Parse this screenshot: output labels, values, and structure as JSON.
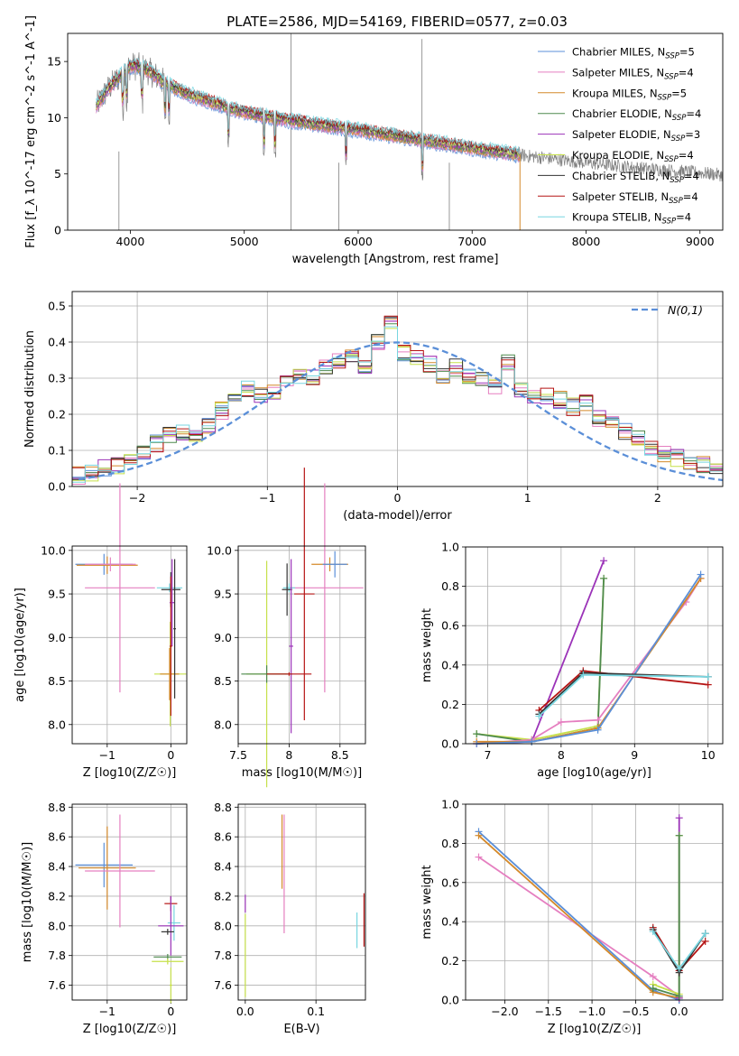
{
  "figure_title": "PLATE=2586, MJD=54169, FIBERID=0577, z=0.03",
  "colors": {
    "chabrier_miles": "#5b8fd8",
    "salpeter_miles": "#e57fc0",
    "kroupa_miles": "#d4892a",
    "chabrier_elodie": "#4e8a4e",
    "salpeter_elodie": "#9b33b8",
    "kroupa_elodie": "#c6e04a",
    "chabrier_stelib": "#333333",
    "salpeter_stelib": "#b51414",
    "kroupa_stelib": "#78d6e0",
    "observed": "#7f7f7f",
    "gaussian": "#5b8fd8"
  },
  "chart_data": [
    {
      "id": "spectrum",
      "type": "line",
      "title": "PLATE=2586, MJD=54169, FIBERID=0577, z=0.03",
      "xlabel": "wavelength [Angstrom, rest frame]",
      "ylabel": "Flux [f_λ 10^-17 erg cm^-2 s^-1 A^-1]",
      "xlim": [
        3450,
        9200
      ],
      "ylim": [
        0,
        17.5
      ],
      "xticks": [
        4000,
        5000,
        6000,
        7000,
        8000,
        9000
      ],
      "yticks": [
        0,
        5,
        10,
        15
      ],
      "grid": false,
      "legend_loc": "upper right",
      "series": [
        {
          "name": "Chabrier MILES, N_SSP=5",
          "color": "#5b8fd8"
        },
        {
          "name": "Salpeter MILES, N_SSP=4",
          "color": "#e57fc0"
        },
        {
          "name": "Kroupa MILES, N_SSP=5",
          "color": "#d4892a"
        },
        {
          "name": "Chabrier ELODIE, N_SSP=4",
          "color": "#4e8a4e"
        },
        {
          "name": "Salpeter ELODIE, N_SSP=3",
          "color": "#9b33b8"
        },
        {
          "name": "Kroupa ELODIE, N_SSP=4",
          "color": "#c6e04a"
        },
        {
          "name": "Chabrier STELIB, N_SSP=4",
          "color": "#333333"
        },
        {
          "name": "Salpeter STELIB, N_SSP=4",
          "color": "#b51414"
        },
        {
          "name": "Kroupa STELIB, N_SSP=4",
          "color": "#78d6e0"
        }
      ],
      "continuum": {
        "x": [
          3700,
          3800,
          3900,
          4000,
          4100,
          4200,
          4300,
          4500,
          4800,
          5000,
          5200,
          5500,
          6000,
          6500,
          7000,
          7400,
          8000,
          8500,
          9000,
          9200
        ],
        "y": [
          11.0,
          12.5,
          13.6,
          14.6,
          14.5,
          13.9,
          13.1,
          12.1,
          11.1,
          10.5,
          10.1,
          9.6,
          8.9,
          8.1,
          7.3,
          6.7,
          6.0,
          5.5,
          5.1,
          4.9
        ]
      },
      "observed_range": [
        3700,
        9200
      ],
      "models_range": [
        3700,
        7420
      ]
    },
    {
      "id": "residuals",
      "type": "histogram",
      "xlabel": "(data-model)/error",
      "ylabel": "Normed distribution",
      "xlim": [
        -2.5,
        2.5
      ],
      "ylim": [
        0,
        0.54
      ],
      "xticks": [
        -2,
        -1,
        0,
        1,
        2
      ],
      "yticks": [
        0.0,
        0.1,
        0.2,
        0.3,
        0.4,
        0.5
      ],
      "grid": true,
      "legend_loc": "upper right",
      "gaussian_label": "N(0,1)",
      "bin_edges_start": -2.5,
      "bin_width": 0.1,
      "base_values": [
        0.03,
        0.04,
        0.05,
        0.06,
        0.07,
        0.09,
        0.12,
        0.14,
        0.15,
        0.14,
        0.17,
        0.21,
        0.24,
        0.27,
        0.25,
        0.26,
        0.29,
        0.31,
        0.3,
        0.33,
        0.35,
        0.36,
        0.33,
        0.4,
        0.46,
        0.37,
        0.36,
        0.34,
        0.31,
        0.33,
        0.31,
        0.3,
        0.28,
        0.34,
        0.27,
        0.25,
        0.25,
        0.24,
        0.22,
        0.23,
        0.19,
        0.17,
        0.15,
        0.13,
        0.11,
        0.09,
        0.08,
        0.07,
        0.06,
        0.04
      ]
    },
    {
      "id": "age_vs_Z",
      "type": "scatter",
      "xlabel": "Z [log10(Z/Z☉)]",
      "ylabel": "age [log10(age/yr)]",
      "xlim": [
        -1.55,
        0.25
      ],
      "ylim": [
        7.78,
        10.05
      ],
      "xticks": [
        -1,
        0
      ],
      "yticks": [
        8.0,
        8.5,
        9.0,
        9.5,
        10.0
      ],
      "grid": true,
      "points": [
        {
          "s": "chabrier_miles",
          "x": -1.05,
          "y": 9.84,
          "xerr": 0.45,
          "yerr": 0.12
        },
        {
          "s": "kroupa_miles",
          "x": -1.0,
          "y": 9.83,
          "xerr": 0.48,
          "yerr": 0.1
        },
        {
          "s": "salpeter_miles",
          "x": -0.8,
          "y": 9.57,
          "xerr": 0.55,
          "yerr": 1.2
        },
        {
          "s": "salpeter_miles",
          "x": -0.95,
          "y": 9.84,
          "xerr": 0.4,
          "yerr": 0.08
        },
        {
          "s": "kroupa_stelib",
          "x": -0.02,
          "y": 9.57,
          "xerr": 0.2,
          "yerr": 0.05
        },
        {
          "s": "chabrier_stelib",
          "x": 0.0,
          "y": 9.55,
          "xerr": 0.15,
          "yerr": 0.2
        },
        {
          "s": "kroupa_elodie",
          "x": -0.01,
          "y": 8.58,
          "xerr": 0.25,
          "yerr": 0.6
        },
        {
          "s": "kroupa_miles",
          "x": -0.02,
          "y": 8.58,
          "xerr": 0.15,
          "yerr": 0.3
        },
        {
          "s": "salpeter_elodie",
          "x": 0.02,
          "y": 9.4,
          "xerr": 0.04,
          "yerr": 0.5
        },
        {
          "s": "chabrier_stelib",
          "x": 0.06,
          "y": 9.1,
          "xerr": 0.02,
          "yerr": 0.8
        },
        {
          "s": "salpeter_stelib",
          "x": 0.0,
          "y": 8.9,
          "xerr": 0.02,
          "yerr": 0.8
        }
      ]
    },
    {
      "id": "age_vs_mass",
      "type": "scatter",
      "xlabel": "mass [log10(M/M☉)]",
      "ylabel": "",
      "xlim": [
        7.5,
        8.75
      ],
      "ylim": [
        7.78,
        10.05
      ],
      "xticks": [
        7.5,
        8.0,
        8.5
      ],
      "yticks": [
        8.0,
        8.5,
        9.0,
        9.5,
        10.0
      ],
      "grid": true,
      "points": [
        {
          "s": "salpeter_miles",
          "x": 8.35,
          "y": 9.57,
          "xerr": 0.38,
          "yerr": 1.2
        },
        {
          "s": "kroupa_miles",
          "x": 8.4,
          "y": 9.84,
          "xerr": 0.18,
          "yerr": 0.08
        },
        {
          "s": "chabrier_miles",
          "x": 8.45,
          "y": 9.84,
          "xerr": 0.12,
          "yerr": 0.15
        },
        {
          "s": "kroupa_stelib",
          "x": 8.0,
          "y": 9.57,
          "xerr": 0.06,
          "yerr": 0.05
        },
        {
          "s": "chabrier_stelib",
          "x": 7.98,
          "y": 9.55,
          "xerr": 0.05,
          "yerr": 0.3
        },
        {
          "s": "salpeter_stelib",
          "x": 8.15,
          "y": 9.5,
          "xerr": 0.1,
          "yerr": 1.45
        },
        {
          "s": "kroupa_elodie",
          "x": 7.78,
          "y": 8.58,
          "xerr": 0.2,
          "yerr": 1.3
        },
        {
          "s": "chabrier_elodie",
          "x": 7.78,
          "y": 8.58,
          "xerr": 0.25,
          "yerr": 0.1
        },
        {
          "s": "salpeter_elodie",
          "x": 8.02,
          "y": 8.9,
          "xerr": 0.02,
          "yerr": 1.0
        },
        {
          "s": "salpeter_stelib",
          "x": 8.0,
          "y": 8.58,
          "xerr": 0.22,
          "yerr": 0.02
        }
      ]
    },
    {
      "id": "weight_vs_age",
      "type": "line",
      "xlabel": "age [log10(age/yr)]",
      "ylabel": "mass weight",
      "xlim": [
        6.7,
        10.2
      ],
      "ylim": [
        0,
        1.0
      ],
      "xticks": [
        7,
        8,
        9,
        10
      ],
      "yticks": [
        0.0,
        0.2,
        0.4,
        0.6,
        0.8,
        1.0
      ],
      "grid": true,
      "series": [
        {
          "s": "salpeter_elodie",
          "x": [
            6.85,
            7.6,
            8.58
          ],
          "y": [
            0.0,
            0.01,
            0.93
          ]
        },
        {
          "s": "kroupa_elodie",
          "x": [
            6.85,
            7.6,
            8.5,
            8.58
          ],
          "y": [
            0.05,
            0.02,
            0.09,
            0.84
          ]
        },
        {
          "s": "chabrier_elodie",
          "x": [
            6.85,
            7.6,
            8.5,
            8.58
          ],
          "y": [
            0.05,
            0.01,
            0.08,
            0.84
          ]
        },
        {
          "s": "salpeter_miles",
          "x": [
            6.85,
            7.6,
            8.0,
            8.5,
            9.7,
            9.9
          ],
          "y": [
            0.0,
            0.02,
            0.11,
            0.12,
            0.72,
            0.84
          ]
        },
        {
          "s": "kroupa_miles",
          "x": [
            6.85,
            7.6,
            8.5,
            9.9
          ],
          "y": [
            0.01,
            0.01,
            0.08,
            0.84
          ]
        },
        {
          "s": "chabrier_miles",
          "x": [
            6.85,
            7.6,
            8.5,
            9.9
          ],
          "y": [
            0.0,
            0.01,
            0.07,
            0.86
          ]
        },
        {
          "s": "salpeter_stelib",
          "x": [
            7.7,
            8.3,
            10.0
          ],
          "y": [
            0.17,
            0.37,
            0.3
          ]
        },
        {
          "s": "chabrier_stelib",
          "x": [
            7.7,
            8.3,
            10.0
          ],
          "y": [
            0.15,
            0.36,
            0.34
          ]
        },
        {
          "s": "kroupa_stelib",
          "x": [
            7.7,
            8.3,
            10.0
          ],
          "y": [
            0.14,
            0.35,
            0.34
          ]
        }
      ]
    },
    {
      "id": "mass_vs_Z",
      "type": "scatter",
      "xlabel": "Z [log10(Z/Z☉)]",
      "ylabel": "mass [log10(M/M☉)]",
      "xlim": [
        -1.55,
        0.25
      ],
      "ylim": [
        7.5,
        8.82
      ],
      "xticks": [
        -1,
        0
      ],
      "yticks": [
        7.6,
        7.8,
        8.0,
        8.2,
        8.4,
        8.6,
        8.8
      ],
      "grid": true,
      "points": [
        {
          "s": "chabrier_miles",
          "x": -1.05,
          "y": 8.41,
          "xerr": 0.45,
          "yerr": 0.15
        },
        {
          "s": "kroupa_miles",
          "x": -1.0,
          "y": 8.39,
          "xerr": 0.45,
          "yerr": 0.28
        },
        {
          "s": "salpeter_miles",
          "x": -0.8,
          "y": 8.37,
          "xerr": 0.55,
          "yerr": 0.38
        },
        {
          "s": "salpeter_stelib",
          "x": 0.0,
          "y": 8.15,
          "xerr": 0.1,
          "yerr": 0.05
        },
        {
          "s": "kroupa_stelib",
          "x": 0.05,
          "y": 8.02,
          "xerr": 0.1,
          "yerr": 0.12
        },
        {
          "s": "salpeter_elodie",
          "x": 0.0,
          "y": 8.0,
          "xerr": 0.2,
          "yerr": 0.2
        },
        {
          "s": "chabrier_stelib",
          "x": -0.05,
          "y": 7.96,
          "xerr": 0.1,
          "yerr": 0.02
        },
        {
          "s": "chabrier_elodie",
          "x": -0.05,
          "y": 7.79,
          "xerr": 0.22,
          "yerr": 0.02
        },
        {
          "s": "kroupa_elodie",
          "x": -0.05,
          "y": 7.76,
          "xerr": 0.25,
          "yerr": 0.02
        },
        {
          "s": "kroupa_elodie",
          "x": 0.0,
          "y": 7.6,
          "xerr": 0.02,
          "yerr": 0.12
        }
      ]
    },
    {
      "id": "mass_vs_ebv",
      "type": "scatter",
      "xlabel": "E(B-V)",
      "ylabel": "",
      "xlim": [
        -0.01,
        0.17
      ],
      "ylim": [
        7.5,
        8.82
      ],
      "xticks": [
        0.0,
        0.1
      ],
      "yticks": [
        7.6,
        7.8,
        8.0,
        8.2,
        8.4,
        8.6,
        8.8
      ],
      "grid": true,
      "points": [
        {
          "s": "salpeter_elodie",
          "x": 0.0,
          "y": 8.15,
          "xerr": 0.0,
          "yerr": 0.06
        },
        {
          "s": "kroupa_elodie",
          "x": 0.0,
          "y": 7.8,
          "xerr": 0.0,
          "yerr": 0.28
        },
        {
          "s": "kroupa_miles",
          "x": 0.052,
          "y": 8.5,
          "xerr": 0.0,
          "yerr": 0.25
        },
        {
          "s": "salpeter_miles",
          "x": 0.055,
          "y": 8.35,
          "xerr": 0.0,
          "yerr": 0.4
        },
        {
          "s": "kroupa_stelib",
          "x": 0.158,
          "y": 7.97,
          "xerr": 0.0,
          "yerr": 0.12
        },
        {
          "s": "salpeter_stelib",
          "x": 0.168,
          "y": 8.04,
          "xerr": 0.0,
          "yerr": 0.18
        }
      ]
    },
    {
      "id": "weight_vs_Z",
      "type": "line",
      "xlabel": "Z [log10(Z/Z☉)]",
      "ylabel": "mass weight",
      "xlim": [
        -2.45,
        0.5
      ],
      "ylim": [
        0,
        1.0
      ],
      "xticks": [
        -2.0,
        -1.5,
        -1.0,
        -0.5,
        0.0
      ],
      "yticks": [
        0.0,
        0.2,
        0.4,
        0.6,
        0.8,
        1.0
      ],
      "grid": true,
      "series": [
        {
          "s": "salpeter_miles",
          "x": [
            -2.3,
            -0.3,
            0.0
          ],
          "y": [
            0.73,
            0.12,
            0.02
          ]
        },
        {
          "s": "chabrier_miles",
          "x": [
            -2.3,
            -0.3,
            0.0
          ],
          "y": [
            0.86,
            0.05,
            0.0
          ]
        },
        {
          "s": "kroupa_miles",
          "x": [
            -2.3,
            -0.3,
            0.0
          ],
          "y": [
            0.84,
            0.04,
            0.01
          ]
        },
        {
          "s": "salpeter_elodie",
          "x": [
            0.0,
            0.0
          ],
          "y": [
            0.01,
            0.93
          ]
        },
        {
          "s": "kroupa_elodie",
          "x": [
            -0.3,
            0.0,
            0.0
          ],
          "y": [
            0.08,
            0.03,
            0.84
          ]
        },
        {
          "s": "chabrier_elodie",
          "x": [
            -0.3,
            0.0,
            0.0
          ],
          "y": [
            0.06,
            0.02,
            0.84
          ]
        },
        {
          "s": "salpeter_stelib",
          "x": [
            -0.3,
            0.0,
            0.3
          ],
          "y": [
            0.37,
            0.15,
            0.3
          ]
        },
        {
          "s": "chabrier_stelib",
          "x": [
            -0.3,
            0.0,
            0.3
          ],
          "y": [
            0.36,
            0.14,
            0.34
          ]
        },
        {
          "s": "kroupa_stelib",
          "x": [
            -0.3,
            0.0,
            0.3
          ],
          "y": [
            0.35,
            0.16,
            0.34
          ]
        }
      ]
    }
  ]
}
